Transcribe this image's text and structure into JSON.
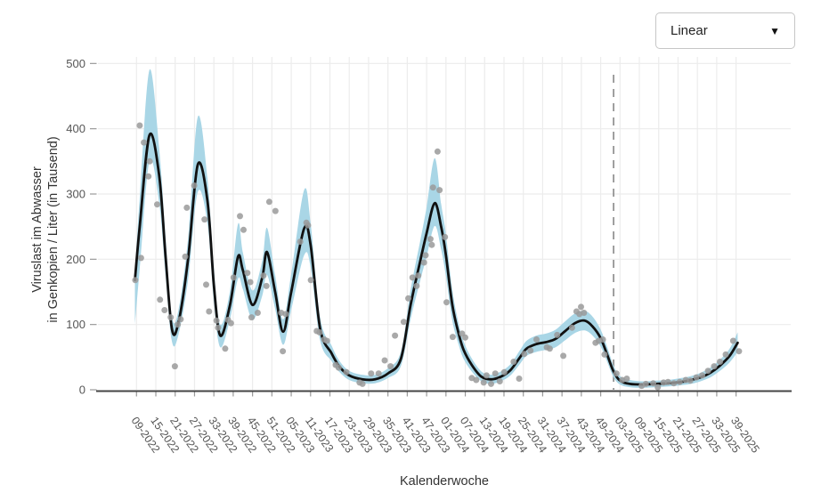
{
  "header": {
    "scale_dropdown": {
      "value": "Linear",
      "arrow_icon": "▼"
    }
  },
  "axes": {
    "x_title": "Kalenderwoche",
    "y_title_line1": "Viruslast im Abwasser",
    "y_title_line2": "in Genkopien / Liter (in Tausend)"
  },
  "chart_data": {
    "type": "line",
    "title": "",
    "xlabel": "Kalenderwoche",
    "ylabel": "Viruslast im Abwasser in Genkopien / Liter (in Tausend)",
    "grid": true,
    "legend_position": "none",
    "x_axis": {
      "tick_labels": [
        "09-2022",
        "15-2022",
        "21-2022",
        "27-2022",
        "33-2022",
        "39-2022",
        "45-2022",
        "51-2022",
        "05-2023",
        "11-2023",
        "17-2023",
        "23-2023",
        "29-2023",
        "35-2023",
        "41-2023",
        "47-2023",
        "01-2024",
        "07-2024",
        "13-2024",
        "19-2024",
        "25-2024",
        "31-2024",
        "37-2024",
        "43-2024",
        "49-2024",
        "03-2025",
        "09-2025",
        "15-2025",
        "21-2025",
        "27-2025",
        "33-2025",
        "39-2025"
      ],
      "weeks_per_tick": 6,
      "offset_unit": "weeks since tick 09-2022"
    },
    "y_axis": {
      "ticks": [
        0,
        100,
        200,
        300,
        400,
        500
      ],
      "range": [
        0,
        500
      ]
    },
    "dashed_vline_week_offset": 148,
    "series": [
      {
        "name": "smoothed-trend",
        "style": "line",
        "points": [
          [
            -0.5,
            168
          ],
          [
            1,
            250
          ],
          [
            4,
            390
          ],
          [
            7,
            330
          ],
          [
            9,
            205
          ],
          [
            11,
            93
          ],
          [
            13,
            103
          ],
          [
            16,
            200
          ],
          [
            19,
            345
          ],
          [
            22,
            290
          ],
          [
            24,
            160
          ],
          [
            26,
            83
          ],
          [
            29,
            130
          ],
          [
            31.5,
            204
          ],
          [
            33,
            183
          ],
          [
            36,
            130
          ],
          [
            39,
            172
          ],
          [
            40.5,
            211
          ],
          [
            43,
            150
          ],
          [
            45.5,
            89
          ],
          [
            48,
            150
          ],
          [
            52,
            247
          ],
          [
            54,
            222
          ],
          [
            57,
            93
          ],
          [
            60.5,
            56
          ],
          [
            63,
            35
          ],
          [
            66,
            22
          ],
          [
            70,
            16
          ],
          [
            74,
            16
          ],
          [
            78,
            25
          ],
          [
            82,
            47
          ],
          [
            85,
            129
          ],
          [
            88,
            197
          ],
          [
            90,
            240
          ],
          [
            92.5,
            286
          ],
          [
            94.5,
            250
          ],
          [
            96,
            206
          ],
          [
            98,
            129
          ],
          [
            100,
            85
          ],
          [
            101.5,
            61
          ],
          [
            104,
            38
          ],
          [
            107,
            20
          ],
          [
            110,
            16
          ],
          [
            113,
            20
          ],
          [
            116,
            30
          ],
          [
            119,
            50
          ],
          [
            121,
            63
          ],
          [
            124,
            70
          ],
          [
            127,
            73
          ],
          [
            130,
            78
          ],
          [
            133,
            90
          ],
          [
            136,
            102
          ],
          [
            139,
            106
          ],
          [
            141.5,
            97
          ],
          [
            144,
            79
          ],
          [
            146,
            54
          ],
          [
            148,
            28
          ],
          [
            150,
            14
          ],
          [
            153,
            9
          ],
          [
            157,
            8
          ],
          [
            161,
            9
          ],
          [
            165,
            10
          ],
          [
            169,
            12
          ],
          [
            172,
            15
          ],
          [
            175,
            19
          ],
          [
            178,
            26
          ],
          [
            181,
            37
          ],
          [
            184,
            52
          ],
          [
            186.5,
            72
          ]
        ]
      },
      {
        "name": "confidence-band",
        "style": "band",
        "points": [
          [
            -0.5,
            100,
            178
          ],
          [
            1,
            185,
            295
          ],
          [
            4,
            350,
            490
          ],
          [
            7,
            288,
            372
          ],
          [
            9,
            175,
            235
          ],
          [
            11,
            74,
            112
          ],
          [
            13,
            84,
            122
          ],
          [
            16,
            168,
            232
          ],
          [
            19,
            303,
            418
          ],
          [
            22,
            255,
            325
          ],
          [
            24,
            134,
            186
          ],
          [
            26,
            65,
            100
          ],
          [
            29,
            108,
            152
          ],
          [
            31.5,
            170,
            254
          ],
          [
            33,
            154,
            210
          ],
          [
            36,
            107,
            152
          ],
          [
            39,
            144,
            198
          ],
          [
            40.5,
            176,
            248
          ],
          [
            43,
            124,
            176
          ],
          [
            45.5,
            69,
            108
          ],
          [
            48,
            122,
            178
          ],
          [
            52,
            206,
            306
          ],
          [
            54,
            188,
            256
          ],
          [
            57,
            75,
            110
          ],
          [
            60.5,
            44,
            68
          ],
          [
            63,
            27,
            44
          ],
          [
            66,
            15,
            29
          ],
          [
            70,
            10,
            23
          ],
          [
            74,
            10,
            23
          ],
          [
            78,
            18,
            33
          ],
          [
            82,
            36,
            58
          ],
          [
            85,
            107,
            152
          ],
          [
            88,
            167,
            228
          ],
          [
            90,
            204,
            280
          ],
          [
            92.5,
            251,
            355
          ],
          [
            94.5,
            215,
            285
          ],
          [
            96,
            174,
            238
          ],
          [
            98,
            105,
            152
          ],
          [
            100,
            68,
            100
          ],
          [
            101.5,
            47,
            74
          ],
          [
            104,
            28,
            48
          ],
          [
            107,
            13,
            28
          ],
          [
            110,
            9,
            23
          ],
          [
            113,
            13,
            28
          ],
          [
            116,
            22,
            39
          ],
          [
            119,
            40,
            61
          ],
          [
            121,
            52,
            75
          ],
          [
            124,
            58,
            83
          ],
          [
            127,
            61,
            86
          ],
          [
            130,
            65,
            92
          ],
          [
            133,
            76,
            105
          ],
          [
            136,
            87,
            117
          ],
          [
            139,
            91,
            121
          ],
          [
            141.5,
            83,
            112
          ],
          [
            144,
            66,
            92
          ],
          [
            146,
            43,
            66
          ],
          [
            148,
            19,
            37
          ],
          [
            150,
            8,
            21
          ],
          [
            153,
            4,
            15
          ],
          [
            157,
            3,
            13
          ],
          [
            161,
            4,
            14
          ],
          [
            165,
            5,
            15
          ],
          [
            169,
            7,
            18
          ],
          [
            172,
            9,
            21
          ],
          [
            175,
            13,
            26
          ],
          [
            178,
            19,
            34
          ],
          [
            181,
            29,
            46
          ],
          [
            184,
            42,
            63
          ],
          [
            186.5,
            58,
            88
          ]
        ]
      },
      {
        "name": "weekly-measurements",
        "style": "scatter",
        "points": [
          [
            -0.4,
            168
          ],
          [
            1,
            405
          ],
          [
            1.4,
            202
          ],
          [
            2.3,
            379
          ],
          [
            3.7,
            327
          ],
          [
            4.1,
            350
          ],
          [
            6.4,
            284
          ],
          [
            7.3,
            138
          ],
          [
            8.7,
            122
          ],
          [
            10.6,
            111
          ],
          [
            11.9,
            36
          ],
          [
            12.8,
            100
          ],
          [
            13.7,
            108
          ],
          [
            15.1,
            204
          ],
          [
            15.6,
            279
          ],
          [
            17.9,
            313
          ],
          [
            21.1,
            261
          ],
          [
            21.6,
            161
          ],
          [
            22.5,
            120
          ],
          [
            24.8,
            106
          ],
          [
            25.3,
            95
          ],
          [
            27.5,
            63
          ],
          [
            28.4,
            107
          ],
          [
            29.3,
            102
          ],
          [
            30.1,
            172
          ],
          [
            32.1,
            266
          ],
          [
            33.2,
            245
          ],
          [
            34.4,
            179
          ],
          [
            35.3,
            165
          ],
          [
            35.7,
            111
          ],
          [
            37.6,
            118
          ],
          [
            39.4,
            175
          ],
          [
            40.3,
            159
          ],
          [
            41.2,
            288
          ],
          [
            43.1,
            274
          ],
          [
            44.9,
            118
          ],
          [
            45.4,
            59
          ],
          [
            46.3,
            116
          ],
          [
            50.8,
            227
          ],
          [
            52.7,
            256
          ],
          [
            53.2,
            252
          ],
          [
            54.1,
            168
          ],
          [
            55.9,
            90
          ],
          [
            56.8,
            88
          ],
          [
            58.2,
            77
          ],
          [
            59.1,
            75
          ],
          [
            61.8,
            38
          ],
          [
            62.7,
            34
          ],
          [
            65.1,
            27
          ],
          [
            69.2,
            11
          ],
          [
            70.1,
            9
          ],
          [
            72.8,
            25
          ],
          [
            75.1,
            25
          ],
          [
            77,
            45
          ],
          [
            78.8,
            36
          ],
          [
            80.2,
            83
          ],
          [
            82.9,
            104
          ],
          [
            84.3,
            140
          ],
          [
            85.6,
            172
          ],
          [
            86.9,
            159
          ],
          [
            87.4,
            175
          ],
          [
            89.2,
            195
          ],
          [
            89.7,
            206
          ],
          [
            91.2,
            231
          ],
          [
            91.6,
            222
          ],
          [
            92,
            310
          ],
          [
            93.4,
            365
          ],
          [
            94,
            306
          ],
          [
            95.7,
            234
          ],
          [
            96.2,
            134
          ],
          [
            98.1,
            81
          ],
          [
            101,
            86
          ],
          [
            102,
            80
          ],
          [
            104,
            18
          ],
          [
            105.4,
            15
          ],
          [
            107.7,
            11
          ],
          [
            108.6,
            22
          ],
          [
            110,
            9
          ],
          [
            111.3,
            25
          ],
          [
            112.7,
            13
          ],
          [
            114.1,
            27
          ],
          [
            117,
            43
          ],
          [
            118.7,
            17
          ],
          [
            120.3,
            55
          ],
          [
            122.2,
            60
          ],
          [
            124.1,
            77
          ],
          [
            127.3,
            65
          ],
          [
            128.2,
            63
          ],
          [
            130.5,
            84
          ],
          [
            132.4,
            52
          ],
          [
            135.1,
            95
          ],
          [
            136.5,
            120
          ],
          [
            137.4,
            116
          ],
          [
            137.9,
            127
          ],
          [
            138.8,
            118
          ],
          [
            142.4,
            72
          ],
          [
            143.4,
            75
          ],
          [
            144.7,
            77
          ],
          [
            145.2,
            54
          ],
          [
            148.9,
            25
          ],
          [
            150.7,
            15
          ],
          [
            152.1,
            17
          ],
          [
            156.7,
            6
          ],
          [
            158,
            9
          ],
          [
            160.3,
            10
          ],
          [
            161.7,
            4
          ],
          [
            163.5,
            11
          ],
          [
            164.9,
            12
          ],
          [
            166.7,
            10
          ],
          [
            168.5,
            12
          ],
          [
            170.4,
            15
          ],
          [
            171.8,
            14
          ],
          [
            173.7,
            19
          ],
          [
            175.5,
            22
          ],
          [
            177.3,
            29
          ],
          [
            179.2,
            36
          ],
          [
            181,
            43
          ],
          [
            182.8,
            54
          ],
          [
            185.1,
            75
          ],
          [
            186.9,
            59
          ]
        ]
      }
    ],
    "colors": {
      "band": "#a9d6e6",
      "line": "#111111",
      "points": "#9a9a9a",
      "dashed_line": "#888888",
      "grid": "#ececec",
      "axis_line": "#444444",
      "tick_text": "#555555",
      "title_text": "#333333"
    }
  }
}
